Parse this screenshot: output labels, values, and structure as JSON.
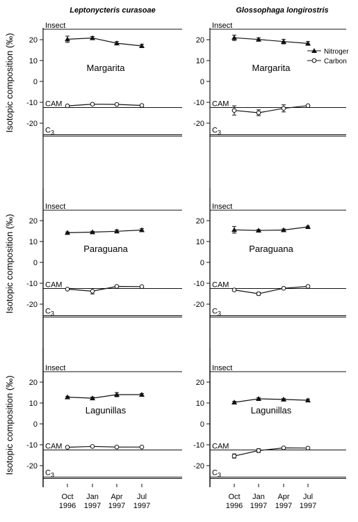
{
  "figure": {
    "column_titles": [
      "Leptonycteris curasoae",
      "Glossophaga longirostris"
    ],
    "ylabel": "Isotopic composition (‰)",
    "x_ticks": [
      {
        "month": "Oct",
        "year": "1996"
      },
      {
        "month": "Jan",
        "year": "1997"
      },
      {
        "month": "Apr",
        "year": "1997"
      },
      {
        "month": "Jul",
        "year": "1997"
      }
    ],
    "legend": [
      {
        "label": "Nitroger",
        "marker": "filled-triangle"
      },
      {
        "label": "Carbon",
        "marker": "open-circle"
      }
    ],
    "reference_lines": [
      {
        "label": "Insect",
        "value": 25
      },
      {
        "label": "CAM",
        "value": -12.5
      },
      {
        "label": "C3",
        "value": -25.5
      }
    ]
  },
  "chart_data": [
    {
      "type": "line",
      "species": "Leptonycteris curasoae",
      "site": "Margarita",
      "x": [
        "Oct 1996",
        "Jan 1997",
        "Apr 1997",
        "Jul 1997"
      ],
      "ylim": [
        -26,
        26
      ],
      "yticks": [
        20,
        10,
        0,
        -10,
        -20
      ],
      "series": [
        {
          "name": "Nitroger",
          "values": [
            20.2,
            20.8,
            18.3,
            17.0
          ],
          "errors": [
            1.5,
            0.7,
            0.8,
            0.8
          ]
        },
        {
          "name": "Carbon",
          "values": [
            -11.7,
            -10.9,
            -11.0,
            -11.5
          ],
          "errors": [
            0.4,
            0.3,
            0.3,
            0.3
          ]
        }
      ]
    },
    {
      "type": "line",
      "species": "Glossophaga longirostris",
      "site": "Margarita",
      "x": [
        "Oct 1996",
        "Jan 1997",
        "Apr 1997",
        "Jul 1997"
      ],
      "ylim": [
        -26,
        26
      ],
      "yticks": [
        20,
        10,
        0,
        -10,
        -20
      ],
      "series": [
        {
          "name": "Nitroger",
          "values": [
            20.9,
            20.1,
            19.1,
            18.2
          ],
          "errors": [
            1.3,
            0.8,
            1.1,
            0.9
          ]
        },
        {
          "name": "Carbon",
          "values": [
            -13.9,
            -15.0,
            -12.9,
            -11.6
          ],
          "errors": [
            2.2,
            1.4,
            1.7,
            0.4
          ]
        }
      ]
    },
    {
      "type": "line",
      "species": "Leptonycteris curasoae",
      "site": "Paraguana",
      "x": [
        "Oct 1996",
        "Jan 1997",
        "Apr 1997",
        "Jul 1997"
      ],
      "ylim": [
        -26,
        26
      ],
      "yticks": [
        20,
        10,
        0,
        -10,
        -20
      ],
      "series": [
        {
          "name": "Nitroger",
          "values": [
            14.2,
            14.5,
            14.9,
            15.5
          ],
          "errors": [
            0.4,
            0.4,
            0.7,
            0.7
          ]
        },
        {
          "name": "Carbon",
          "values": [
            -12.8,
            -13.8,
            -11.5,
            -11.6
          ],
          "errors": [
            0.4,
            1.3,
            0.3,
            0.3
          ]
        }
      ]
    },
    {
      "type": "line",
      "species": "Glossophaga longirostris",
      "site": "Paraguana",
      "x": [
        "Oct 1996",
        "Jan 1997",
        "Apr 1997",
        "Jul 1997"
      ],
      "ylim": [
        -26,
        26
      ],
      "yticks": [
        20,
        10,
        0,
        -10,
        -20
      ],
      "series": [
        {
          "name": "Nitroger",
          "values": [
            15.6,
            15.3,
            15.5,
            17.0
          ],
          "errors": [
            1.6,
            0.4,
            0.5,
            0.4
          ]
        },
        {
          "name": "Carbon",
          "values": [
            -13.2,
            -15.0,
            -12.4,
            -11.5
          ],
          "errors": [
            0.4,
            0.7,
            0.3,
            0.3
          ]
        }
      ]
    },
    {
      "type": "line",
      "species": "Leptonycteris curasoae",
      "site": "Lagunillas",
      "x": [
        "Oct 1996",
        "Jan 1997",
        "Apr 1997",
        "Jul 1997"
      ],
      "ylim": [
        -26,
        26
      ],
      "yticks": [
        20,
        10,
        0,
        -10,
        -20
      ],
      "series": [
        {
          "name": "Nitroger",
          "values": [
            12.8,
            12.3,
            14.0,
            14.0
          ],
          "errors": [
            0.4,
            0.5,
            1.0,
            0.5
          ]
        },
        {
          "name": "Carbon",
          "values": [
            -11.2,
            -10.8,
            -11.1,
            -11.1
          ],
          "errors": [
            0.3,
            0.3,
            0.4,
            0.3
          ]
        }
      ]
    },
    {
      "type": "line",
      "species": "Glossophaga longirostris",
      "site": "Lagunillas",
      "x": [
        "Oct 1996",
        "Jan 1997",
        "Apr 1997",
        "Jul 1997"
      ],
      "ylim": [
        -26,
        26
      ],
      "yticks": [
        20,
        10,
        0,
        -10,
        -20
      ],
      "series": [
        {
          "name": "Nitroger",
          "values": [
            10.3,
            12.0,
            11.7,
            11.3
          ],
          "errors": [
            0.5,
            0.5,
            0.4,
            0.6
          ]
        },
        {
          "name": "Carbon",
          "values": [
            -15.4,
            -12.8,
            -11.5,
            -11.6
          ],
          "errors": [
            1.0,
            0.9,
            0.3,
            0.3
          ]
        }
      ]
    }
  ]
}
